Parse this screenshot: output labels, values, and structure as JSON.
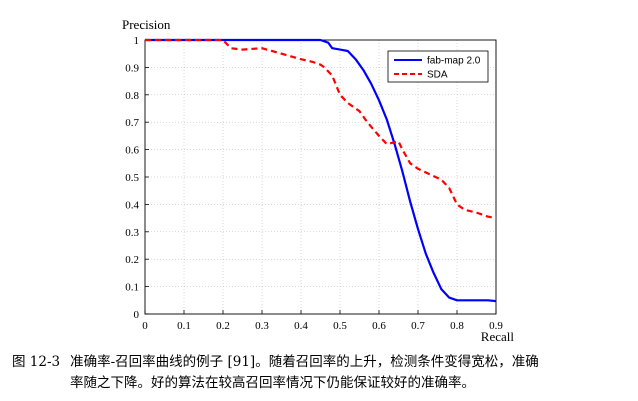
{
  "chart_data": {
    "type": "line",
    "ylabel": "Precision",
    "xlabel": "Recall",
    "xlim": [
      0,
      0.9
    ],
    "ylim": [
      0,
      1
    ],
    "xticks": [
      "0",
      "0.1",
      "0.2",
      "0.3",
      "0.4",
      "0.5",
      "0.6",
      "0.7",
      "0.8",
      "0.9"
    ],
    "yticks": [
      "0",
      "0.1",
      "0.2",
      "0.3",
      "0.4",
      "0.5",
      "0.6",
      "0.7",
      "0.8",
      "0.9",
      "1"
    ],
    "legend_position": "top-right",
    "series": [
      {
        "name": "fab-map 2.0",
        "color": "#0000ff",
        "style": "solid",
        "x": [
          0,
          0.1,
          0.2,
          0.3,
          0.4,
          0.45,
          0.47,
          0.48,
          0.5,
          0.52,
          0.54,
          0.56,
          0.58,
          0.6,
          0.62,
          0.64,
          0.66,
          0.68,
          0.7,
          0.72,
          0.74,
          0.76,
          0.78,
          0.8,
          0.82,
          0.85,
          0.88,
          0.9
        ],
        "y": [
          1,
          1,
          1,
          1,
          1,
          1,
          0.99,
          0.97,
          0.965,
          0.96,
          0.93,
          0.89,
          0.84,
          0.78,
          0.71,
          0.62,
          0.52,
          0.41,
          0.31,
          0.22,
          0.15,
          0.09,
          0.06,
          0.05,
          0.05,
          0.05,
          0.05,
          0.047
        ]
      },
      {
        "name": "SDA",
        "color": "#ff0000",
        "style": "dashed",
        "x": [
          0,
          0.1,
          0.18,
          0.2,
          0.22,
          0.25,
          0.3,
          0.35,
          0.4,
          0.43,
          0.45,
          0.46,
          0.48,
          0.5,
          0.52,
          0.55,
          0.57,
          0.6,
          0.62,
          0.65,
          0.66,
          0.68,
          0.7,
          0.73,
          0.76,
          0.78,
          0.8,
          0.82,
          0.85,
          0.88,
          0.9
        ],
        "y": [
          1,
          1,
          1,
          1,
          0.97,
          0.965,
          0.97,
          0.95,
          0.93,
          0.92,
          0.91,
          0.9,
          0.87,
          0.8,
          0.77,
          0.74,
          0.7,
          0.65,
          0.62,
          0.63,
          0.6,
          0.55,
          0.53,
          0.51,
          0.49,
          0.46,
          0.4,
          0.38,
          0.37,
          0.355,
          0.35
        ]
      }
    ]
  },
  "caption": {
    "label": "图 12-3",
    "line1": "准确率-召回率曲线的例子 [91]。随着召回率的上升，检测条件变得宽松，准确",
    "line2": "率随之下降。好的算法在较高召回率情况下仍能保证较好的准确率。"
  }
}
